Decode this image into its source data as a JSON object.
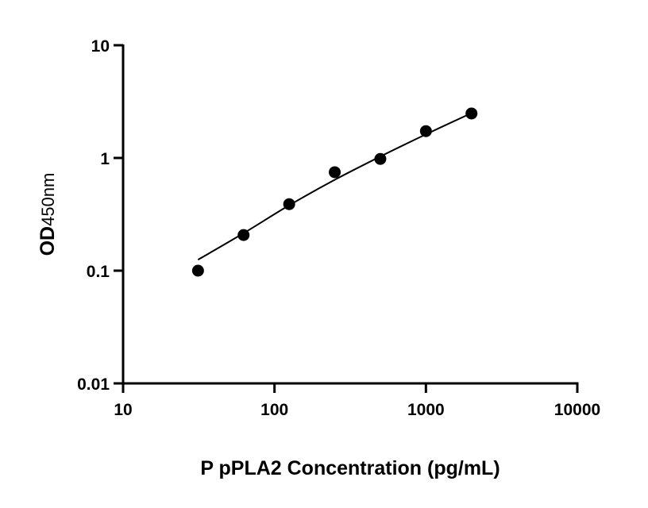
{
  "chart_data": {
    "type": "scatter",
    "title": "",
    "xlabel": "P pPLA2 Concentration (pg/mL)",
    "ylabel_main": "OD",
    "ylabel_sub": "450nm",
    "xscale": "log",
    "yscale": "log",
    "xlim": [
      10,
      10000
    ],
    "ylim": [
      0.01,
      10
    ],
    "xticks": [
      "10",
      "100",
      "1000",
      "10000"
    ],
    "yticks": [
      "0.01",
      "0.1",
      "1",
      "10"
    ],
    "grid": false,
    "points": {
      "x": [
        31.25,
        62.5,
        125,
        250,
        500,
        1000,
        2000
      ],
      "y": [
        0.1,
        0.207,
        0.389,
        0.747,
        0.98,
        1.73,
        2.48
      ]
    },
    "fit": {
      "x": [
        31.25,
        62.5,
        125,
        250,
        500,
        1000,
        2000
      ],
      "y": [
        0.125,
        0.215,
        0.38,
        0.64,
        1.03,
        1.62,
        2.5
      ]
    },
    "color": "#000000"
  }
}
